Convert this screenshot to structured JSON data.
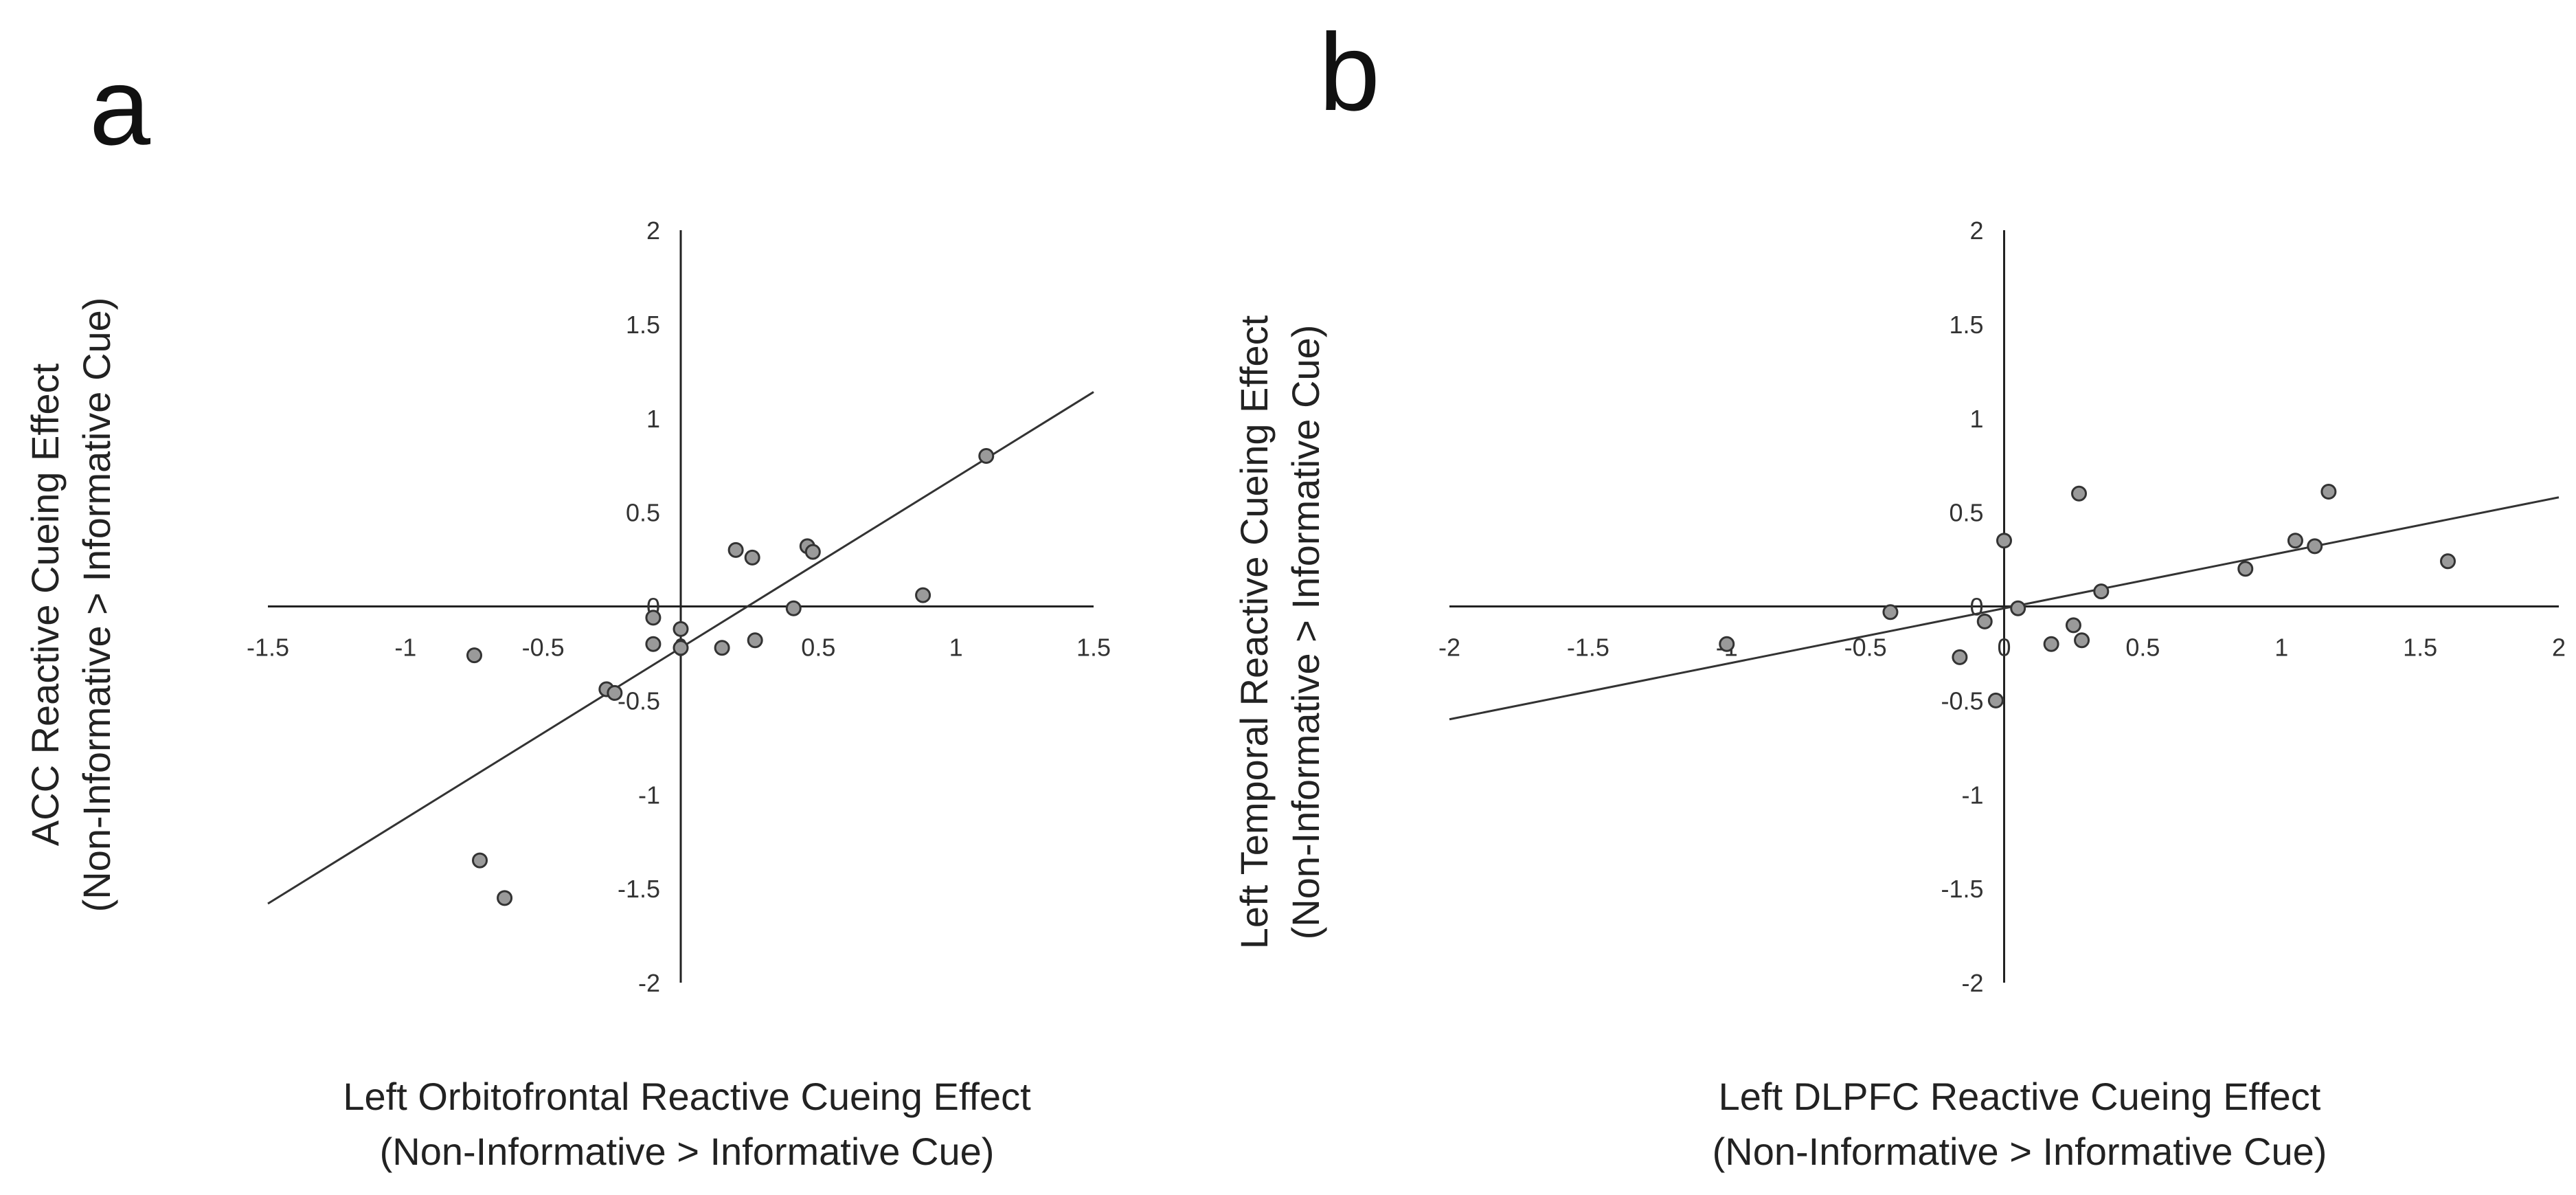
{
  "chart_data": [
    {
      "type": "scatter",
      "panel_label": "a",
      "title": "",
      "xlabel": "Left Orbitofrontal Reactive Cueing Effect",
      "xlabel_sub": "(Non-Informative > Informative Cue)",
      "ylabel": "ACC Reactive Cueing Effect",
      "ylabel_sub": "(Non-Informative > Informative Cue)",
      "xlim": [
        -1.5,
        1.5
      ],
      "ylim": [
        -2,
        2
      ],
      "x_ticks": [
        -1.5,
        -1,
        -0.5,
        0,
        0.5,
        1,
        1.5
      ],
      "x_tick_labels": [
        "-1.5",
        "-1",
        "-0.5",
        "0",
        "0.5",
        "1",
        "1.5"
      ],
      "y_ticks": [
        -2,
        -1.5,
        -1,
        -0.5,
        0,
        0.5,
        1,
        1.5,
        2
      ],
      "y_tick_labels": [
        "-2",
        "-1.5",
        "-1",
        "-0.5",
        "0",
        "0.5",
        "1",
        "1.5",
        "2"
      ],
      "grid": false,
      "points": [
        {
          "x": -0.75,
          "y": -0.26
        },
        {
          "x": -0.73,
          "y": -1.35
        },
        {
          "x": -0.64,
          "y": -1.55
        },
        {
          "x": -0.27,
          "y": -0.44
        },
        {
          "x": -0.24,
          "y": -0.46
        },
        {
          "x": -0.1,
          "y": -0.06
        },
        {
          "x": -0.1,
          "y": -0.2
        },
        {
          "x": 0.0,
          "y": -0.12
        },
        {
          "x": 0.0,
          "y": -0.22
        },
        {
          "x": 0.15,
          "y": -0.22
        },
        {
          "x": 0.2,
          "y": 0.3
        },
        {
          "x": 0.26,
          "y": 0.26
        },
        {
          "x": 0.27,
          "y": -0.18
        },
        {
          "x": 0.41,
          "y": -0.01
        },
        {
          "x": 0.46,
          "y": 0.32
        },
        {
          "x": 0.48,
          "y": 0.29
        },
        {
          "x": 0.88,
          "y": 0.06
        },
        {
          "x": 1.11,
          "y": 0.8
        }
      ],
      "trendline": {
        "x": [
          -1.5,
          1.5
        ],
        "y": [
          -1.58,
          1.14
        ]
      }
    },
    {
      "type": "scatter",
      "panel_label": "b",
      "title": "",
      "xlabel": "Left DLPFC Reactive Cueing Effect",
      "xlabel_sub": "(Non-Informative > Informative Cue)",
      "ylabel": "Left Temporal Reactive Cueing Effect",
      "ylabel_sub": "(Non-Informative > Informative Cue)",
      "xlim": [
        -2,
        2
      ],
      "ylim": [
        -2,
        2
      ],
      "x_ticks": [
        -2,
        -1.5,
        -1,
        -0.5,
        0,
        0.5,
        1,
        1.5,
        2
      ],
      "x_tick_labels": [
        "-2",
        "-1.5",
        "-1",
        "-0.5",
        "0",
        "0.5",
        "1",
        "1.5",
        "2"
      ],
      "y_ticks": [
        -2,
        -1.5,
        -1,
        -0.5,
        0,
        0.5,
        1,
        1.5,
        2
      ],
      "y_tick_labels": [
        "-2",
        "-1.5",
        "-1",
        "-0.5",
        "0",
        "0.5",
        "1",
        "1.5",
        "2"
      ],
      "grid": false,
      "points": [
        {
          "x": -1.0,
          "y": -0.2
        },
        {
          "x": -0.41,
          "y": -0.03
        },
        {
          "x": -0.16,
          "y": -0.27
        },
        {
          "x": -0.07,
          "y": -0.08
        },
        {
          "x": -0.03,
          "y": -0.5
        },
        {
          "x": 0.0,
          "y": 0.35
        },
        {
          "x": 0.05,
          "y": -0.01
        },
        {
          "x": 0.17,
          "y": -0.2
        },
        {
          "x": 0.25,
          "y": -0.1
        },
        {
          "x": 0.27,
          "y": 0.6
        },
        {
          "x": 0.28,
          "y": -0.18
        },
        {
          "x": 0.35,
          "y": 0.08
        },
        {
          "x": 0.87,
          "y": 0.2
        },
        {
          "x": 1.05,
          "y": 0.35
        },
        {
          "x": 1.12,
          "y": 0.32
        },
        {
          "x": 1.17,
          "y": 0.61
        },
        {
          "x": 1.6,
          "y": 0.24
        }
      ],
      "trendline": {
        "x": [
          -2,
          2
        ],
        "y": [
          -0.6,
          0.58
        ]
      }
    }
  ]
}
